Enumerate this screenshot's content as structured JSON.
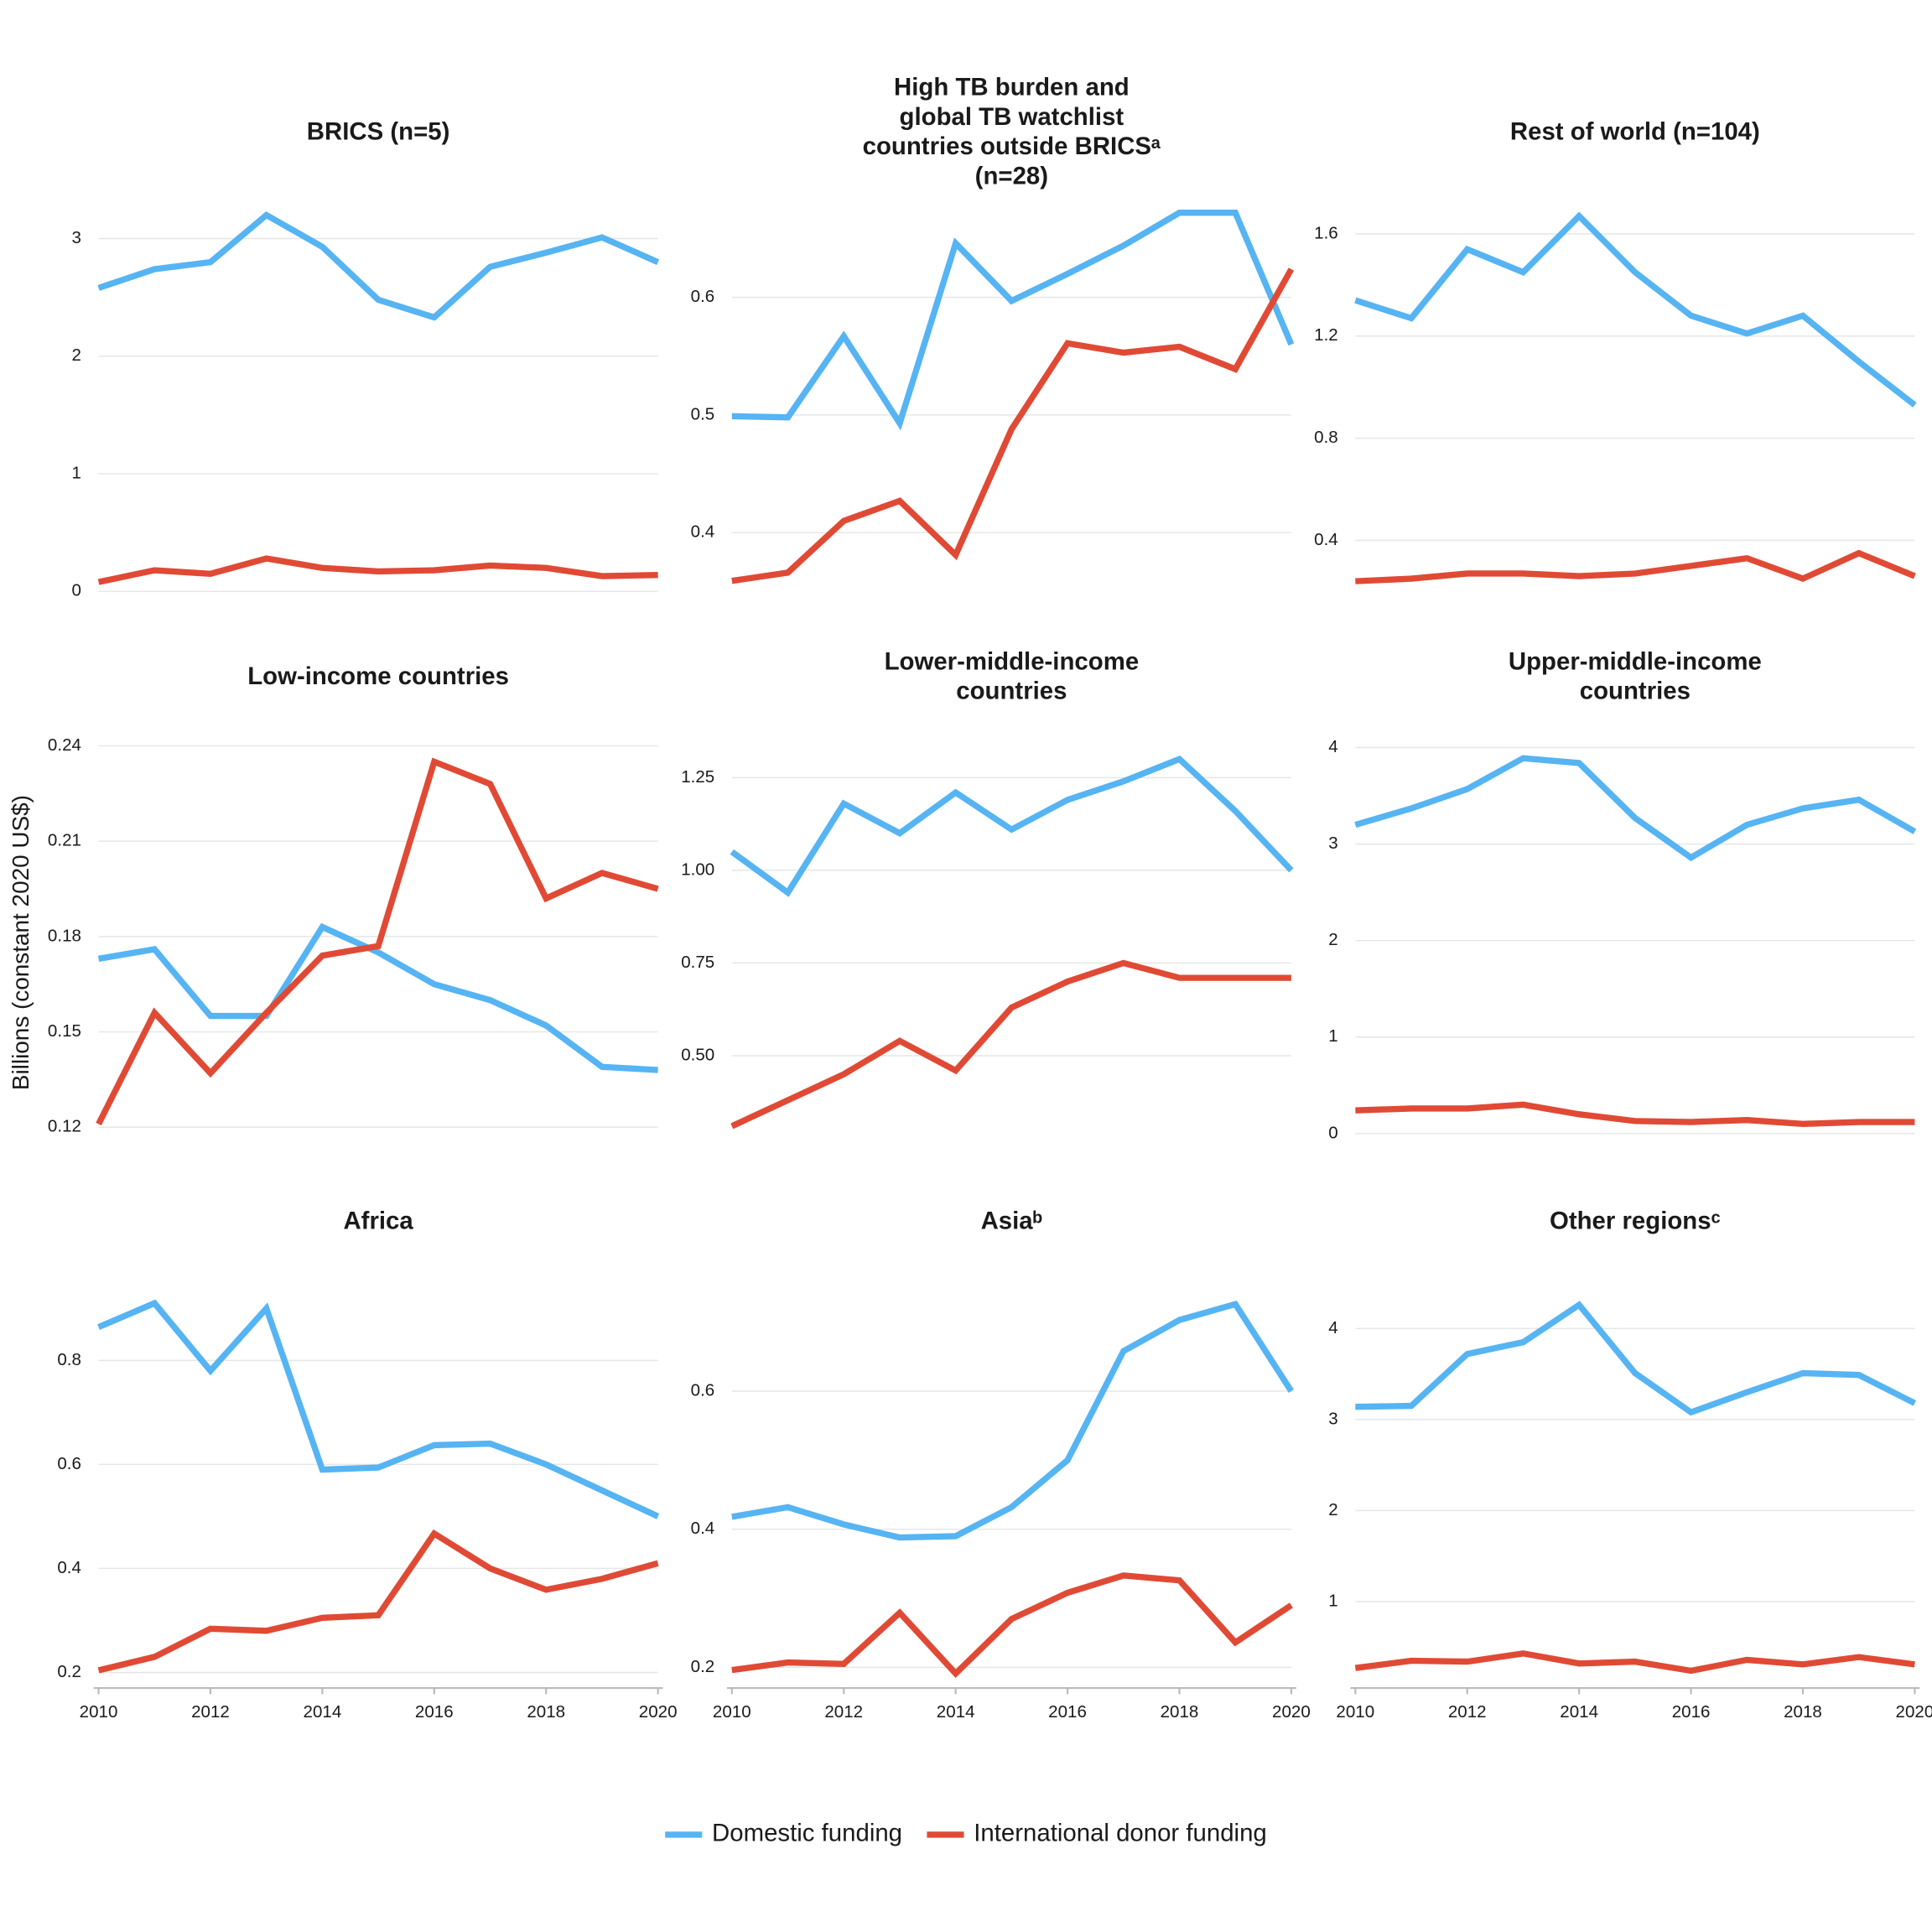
{
  "y_label": "Billions (constant 2020 US$)",
  "legend": [
    {
      "name": "Domestic funding",
      "color": "#56b4f2"
    },
    {
      "name": "International donor funding",
      "color": "#e04a35"
    }
  ],
  "chart_data": [
    {
      "type": "line",
      "title": [
        "BRICS (n=5)"
      ],
      "x": [
        2010,
        2011,
        2012,
        2013,
        2014,
        2015,
        2016,
        2017,
        2018,
        2019,
        2020
      ],
      "xlim": [
        2010,
        2020
      ],
      "ylim": [
        0,
        3.3
      ],
      "yticks": [
        0,
        1,
        2,
        3
      ],
      "series": [
        {
          "values": [
            2.58,
            2.74,
            2.8,
            3.2,
            2.93,
            2.48,
            2.33,
            2.76,
            2.88,
            3.01,
            2.8
          ]
        },
        {
          "values": [
            0.08,
            0.18,
            0.15,
            0.28,
            0.2,
            0.17,
            0.18,
            0.22,
            0.2,
            0.13,
            0.14
          ]
        }
      ]
    },
    {
      "type": "line",
      "title": [
        "High TB burden and",
        "global TB watchlist",
        "countries outside BRICSᵃ",
        "(n=28)"
      ],
      "x": [
        2010,
        2011,
        2012,
        2013,
        2014,
        2015,
        2016,
        2017,
        2018,
        2019,
        2020
      ],
      "xlim": [
        2010,
        2020
      ],
      "ylim": [
        0.35,
        0.68
      ],
      "yticks": [
        0.4,
        0.5,
        0.6
      ],
      "series": [
        {
          "values": [
            0.499,
            0.498,
            0.567,
            0.493,
            0.646,
            0.597,
            0.62,
            0.644,
            0.672,
            0.672,
            0.56
          ]
        },
        {
          "values": [
            0.359,
            0.366,
            0.41,
            0.427,
            0.381,
            0.488,
            0.561,
            0.553,
            0.558,
            0.539,
            0.624
          ]
        }
      ]
    },
    {
      "type": "line",
      "title": [
        "Rest of world (n=104)"
      ],
      "x": [
        2010,
        2011,
        2012,
        2013,
        2014,
        2015,
        2016,
        2017,
        2018,
        2019,
        2020
      ],
      "xlim": [
        2010,
        2020
      ],
      "ylim": [
        0.2,
        1.72
      ],
      "yticks": [
        0.4,
        0.8,
        1.2,
        1.6
      ],
      "series": [
        {
          "values": [
            1.34,
            1.27,
            1.54,
            1.45,
            1.67,
            1.45,
            1.28,
            1.21,
            1.28,
            1.1,
            0.93
          ]
        },
        {
          "values": [
            0.24,
            0.25,
            0.27,
            0.27,
            0.26,
            0.27,
            0.3,
            0.33,
            0.25,
            0.35,
            0.26
          ]
        }
      ]
    },
    {
      "type": "line",
      "title": [
        "Low-income countries"
      ],
      "x": [
        2010,
        2011,
        2012,
        2013,
        2014,
        2015,
        2016,
        2017,
        2018,
        2019,
        2020
      ],
      "xlim": [
        2010,
        2020
      ],
      "ylim": [
        0.118,
        0.244
      ],
      "yticks": [
        0.12,
        0.15,
        0.18,
        0.21,
        0.24
      ],
      "series": [
        {
          "values": [
            0.173,
            0.176,
            0.155,
            0.155,
            0.183,
            0.175,
            0.165,
            0.16,
            0.152,
            0.139,
            0.138
          ]
        },
        {
          "values": [
            0.121,
            0.156,
            0.137,
            0.156,
            0.174,
            0.177,
            0.235,
            0.228,
            0.192,
            0.2,
            0.195
          ]
        }
      ]
    },
    {
      "type": "line",
      "title": [
        "Lower-middle-income",
        "countries"
      ],
      "x": [
        2010,
        2011,
        2012,
        2013,
        2014,
        2015,
        2016,
        2017,
        2018,
        2019,
        2020
      ],
      "xlim": [
        2010,
        2020
      ],
      "ylim": [
        0.29,
        1.37
      ],
      "yticks": [
        {
          "value": 0.5,
          "label": "0.50"
        },
        0.75,
        {
          "value": 1,
          "label": "1.00"
        },
        1.25
      ],
      "series": [
        {
          "values": [
            1.05,
            0.94,
            1.18,
            1.1,
            1.21,
            1.11,
            1.19,
            1.24,
            1.3,
            1.16,
            1.0
          ]
        },
        {
          "values": [
            0.31,
            0.38,
            0.45,
            0.54,
            0.46,
            0.63,
            0.7,
            0.75,
            0.71,
            0.71,
            0.71
          ]
        }
      ]
    },
    {
      "type": "line",
      "title": [
        "Upper-middle-income",
        "countries"
      ],
      "x": [
        2010,
        2011,
        2012,
        2013,
        2014,
        2015,
        2016,
        2017,
        2018,
        2019,
        2020
      ],
      "xlim": [
        2010,
        2020
      ],
      "ylim": [
        0,
        4.15
      ],
      "yticks": [
        0,
        1,
        2,
        3,
        4
      ],
      "series": [
        {
          "values": [
            3.2,
            3.37,
            3.57,
            3.89,
            3.84,
            3.27,
            2.86,
            3.2,
            3.37,
            3.46,
            3.13
          ]
        },
        {
          "values": [
            0.24,
            0.26,
            0.26,
            0.3,
            0.2,
            0.13,
            0.12,
            0.14,
            0.1,
            0.12,
            0.12
          ]
        }
      ]
    },
    {
      "type": "line",
      "title": [
        "Africa"
      ],
      "x": [
        2010,
        2011,
        2012,
        2013,
        2014,
        2015,
        2016,
        2017,
        2018,
        2019,
        2020
      ],
      "xlim": [
        2010,
        2020
      ],
      "xticks": [
        2010,
        2012,
        2014,
        2016,
        2018,
        2020
      ],
      "ylim": [
        0.17,
        0.94
      ],
      "yticks": [
        0.2,
        0.4,
        0.6,
        0.8
      ],
      "series": [
        {
          "values": [
            0.864,
            0.91,
            0.78,
            0.9,
            0.59,
            0.594,
            0.637,
            0.64,
            0.6,
            0.55,
            0.5
          ]
        },
        {
          "values": [
            0.204,
            0.23,
            0.284,
            0.28,
            0.305,
            0.31,
            0.467,
            0.4,
            0.359,
            0.38,
            0.41
          ]
        }
      ]
    },
    {
      "type": "line",
      "title": [
        "Asiaᵇ"
      ],
      "x": [
        2010,
        2011,
        2012,
        2013,
        2014,
        2015,
        2016,
        2017,
        2018,
        2019,
        2020
      ],
      "xlim": [
        2010,
        2020
      ],
      "xticks": [
        2010,
        2012,
        2014,
        2016,
        2018,
        2020
      ],
      "ylim": [
        0.17,
        0.75
      ],
      "yticks": [
        0.2,
        0.4,
        0.6
      ],
      "series": [
        {
          "values": [
            0.418,
            0.432,
            0.407,
            0.388,
            0.39,
            0.432,
            0.5,
            0.658,
            0.703,
            0.726,
            0.6
          ]
        },
        {
          "values": [
            0.196,
            0.207,
            0.205,
            0.279,
            0.191,
            0.27,
            0.308,
            0.333,
            0.326,
            0.236,
            0.29
          ]
        }
      ]
    },
    {
      "type": "line",
      "title": [
        "Other regionsᶜ"
      ],
      "x": [
        2010,
        2011,
        2012,
        2013,
        2014,
        2015,
        2016,
        2017,
        2018,
        2019,
        2020
      ],
      "xlim": [
        2010,
        2020
      ],
      "xticks": [
        2010,
        2012,
        2014,
        2016,
        2018,
        2020
      ],
      "ylim": [
        0.05,
        4.45
      ],
      "yticks": [
        1,
        2,
        3,
        4
      ],
      "series": [
        {
          "values": [
            3.14,
            3.15,
            3.72,
            3.85,
            4.26,
            3.51,
            3.08,
            3.3,
            3.51,
            3.49,
            3.18
          ]
        },
        {
          "values": [
            0.27,
            0.35,
            0.34,
            0.43,
            0.32,
            0.34,
            0.24,
            0.36,
            0.31,
            0.39,
            0.31
          ]
        }
      ]
    }
  ]
}
